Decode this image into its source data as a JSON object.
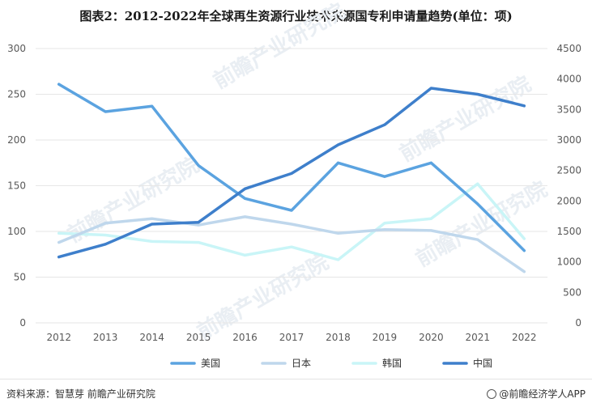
{
  "title": "图表2：2012-2022年全球再生资源行业技术来源国专利申请量趋势(单位：项)",
  "watermark": "前瞻产业研究院",
  "footer": {
    "source": "资料来源：智慧芽 前瞻产业研究院",
    "brand": "@前瞻经济学人APP"
  },
  "chart_data": {
    "type": "line",
    "categories": [
      "2012",
      "2013",
      "2014",
      "2015",
      "2016",
      "2017",
      "2018",
      "2019",
      "2020",
      "2021",
      "2022"
    ],
    "y_left": {
      "lim": [
        0,
        300
      ],
      "ticks": [
        0,
        50,
        100,
        150,
        200,
        250,
        300
      ]
    },
    "y_right": {
      "lim": [
        0,
        4500
      ],
      "ticks": [
        0,
        500,
        1000,
        1500,
        2000,
        2500,
        3000,
        3500,
        4000,
        4500
      ]
    },
    "grid": true,
    "legend_position": "bottom",
    "series": [
      {
        "name": "美国",
        "axis": "left",
        "color": "#5ba3e0",
        "values": [
          261,
          231,
          237,
          172,
          136,
          123,
          175,
          160,
          175,
          130,
          79
        ]
      },
      {
        "name": "日本",
        "axis": "left",
        "color": "#bfd7ec",
        "values": [
          88,
          109,
          114,
          107,
          116,
          108,
          98,
          102,
          101,
          91,
          56
        ]
      },
      {
        "name": "韩国",
        "axis": "left",
        "color": "#c9f5f7",
        "values": [
          98,
          96,
          89,
          88,
          74,
          83,
          69,
          109,
          114,
          152,
          92
        ]
      },
      {
        "name": "中国",
        "axis": "right",
        "color": "#3e7fcb",
        "values": [
          1080,
          1290,
          1620,
          1650,
          2200,
          2450,
          2920,
          3250,
          3850,
          3750,
          3560
        ]
      }
    ]
  }
}
